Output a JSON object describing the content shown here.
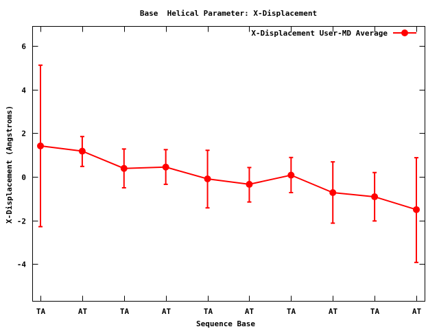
{
  "chart_data": {
    "type": "line",
    "title": "Base  Helical Parameter: X-Displacement",
    "xlabel": "Sequence Base",
    "ylabel": "X-Displacement (Angstroms)",
    "categories": [
      "TA",
      "AT",
      "TA",
      "AT",
      "TA",
      "AT",
      "TA",
      "AT",
      "TA",
      "AT"
    ],
    "ylim": [
      -5.7,
      6.9
    ],
    "yticks": [
      -4,
      -2,
      0,
      2,
      4,
      6
    ],
    "series": [
      {
        "name": "X-Displacement User-MD Average",
        "color": "#ff0000",
        "values": [
          1.42,
          1.18,
          0.39,
          0.45,
          -0.09,
          -0.34,
          0.08,
          -0.72,
          -0.91,
          -1.5
        ],
        "err_low": [
          -2.28,
          0.48,
          -0.5,
          -0.34,
          -1.42,
          -1.15,
          -0.72,
          -2.12,
          -2.02,
          -3.92
        ],
        "err_high": [
          5.12,
          1.85,
          1.28,
          1.25,
          1.22,
          0.43,
          0.89,
          0.69,
          0.2,
          0.88
        ]
      }
    ],
    "legend_position": "top-right",
    "grid": false
  }
}
